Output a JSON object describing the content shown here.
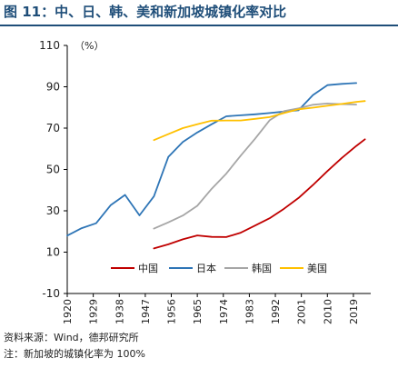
{
  "title": "图 11：中、日、韩、美和新加坡城镇化率对比",
  "source": "资料来源：Wind，德邦研究所",
  "note": "注：新加坡的城镇化率为 100%",
  "colors": {
    "title": "#1f4e79",
    "china": "#c00000",
    "japan": "#2e75b6",
    "korea": "#a6a6a6",
    "usa": "#ffc000"
  },
  "chart_data": {
    "type": "line",
    "title": "",
    "xlabel": "",
    "ylabel": "",
    "y_unit": "（%）",
    "ylim": [
      -10,
      110
    ],
    "yticks": [
      -10,
      10,
      30,
      50,
      70,
      90,
      110
    ],
    "xlim": [
      1920,
      2025
    ],
    "xticks": [
      1920,
      1929,
      1938,
      1947,
      1956,
      1965,
      1974,
      1983,
      1992,
      2001,
      2010,
      2019
    ],
    "grid": false,
    "legend": "inside-bottom-right",
    "series": [
      {
        "name": "中国",
        "color": "#c00000",
        "x": [
          1950,
          1955,
          1960,
          1965,
          1970,
          1975,
          1980,
          1985,
          1990,
          1995,
          2000,
          2005,
          2010,
          2015,
          2020,
          2023
        ],
        "y": [
          11.8,
          13.8,
          16.2,
          18.1,
          17.4,
          17.3,
          19.4,
          22.9,
          26.4,
          31.0,
          36.2,
          42.5,
          49.2,
          55.6,
          61.4,
          64.6
        ]
      },
      {
        "name": "日本",
        "color": "#2e75b6",
        "x": [
          1920,
          1925,
          1930,
          1935,
          1940,
          1945,
          1950,
          1955,
          1960,
          1965,
          1970,
          1975,
          1980,
          1985,
          1990,
          1995,
          2000,
          2005,
          2010,
          2015,
          2020
        ],
        "y": [
          18.0,
          21.6,
          24.0,
          32.7,
          37.7,
          27.8,
          37.0,
          56.1,
          63.3,
          67.9,
          71.9,
          75.7,
          76.2,
          76.7,
          77.3,
          78.0,
          78.6,
          86.0,
          90.8,
          91.4,
          91.8
        ]
      },
      {
        "name": "韩国",
        "color": "#a6a6a6",
        "x": [
          1950,
          1955,
          1960,
          1965,
          1970,
          1975,
          1980,
          1985,
          1990,
          1995,
          2000,
          2005,
          2010,
          2015,
          2020
        ],
        "y": [
          21.4,
          24.4,
          27.7,
          32.4,
          40.7,
          48.0,
          56.7,
          64.9,
          73.8,
          78.2,
          79.6,
          81.3,
          81.9,
          81.6,
          81.4
        ]
      },
      {
        "name": "美国",
        "color": "#ffc000",
        "x": [
          1950,
          1955,
          1960,
          1965,
          1970,
          1975,
          1980,
          1985,
          1990,
          1995,
          2000,
          2005,
          2010,
          2015,
          2020,
          2023
        ],
        "y": [
          64.2,
          67.1,
          70.0,
          71.9,
          73.6,
          73.7,
          73.7,
          74.5,
          75.3,
          77.3,
          79.1,
          79.9,
          80.8,
          81.7,
          82.7,
          83.1
        ]
      }
    ]
  }
}
